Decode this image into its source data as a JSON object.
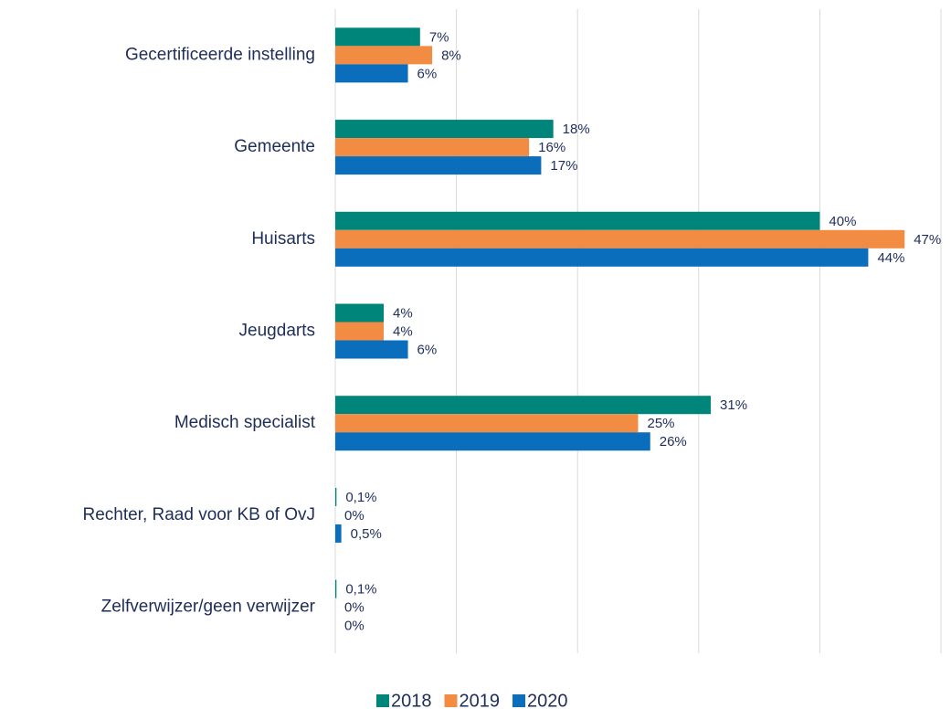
{
  "chart_data": {
    "type": "barh",
    "categories": [
      "Gecertificeerde instelling",
      "Gemeente",
      "Huisarts",
      "Jeugdarts",
      "Medisch specialist",
      "Rechter, Raad voor KB of OvJ",
      "Zelfverwijzer/geen verwijzer"
    ],
    "series": [
      {
        "name": "2018",
        "color": "#00857a",
        "values": [
          7,
          18,
          40,
          4,
          31,
          0.1,
          0.1
        ],
        "value_labels": [
          "7%",
          "18%",
          "40%",
          "4%",
          "31%",
          "0,1%",
          "0,1%"
        ]
      },
      {
        "name": "2019",
        "color": "#f28c43",
        "values": [
          8,
          16,
          47,
          4,
          25,
          0,
          0
        ],
        "value_labels": [
          "8%",
          "16%",
          "47%",
          "4%",
          "25%",
          "0%",
          "0%"
        ]
      },
      {
        "name": "2020",
        "color": "#0a6ebd",
        "values": [
          6,
          17,
          44,
          6,
          26,
          0.5,
          0
        ],
        "value_labels": [
          "6%",
          "17%",
          "44%",
          "6%",
          "26%",
          "0,5%",
          "0%"
        ]
      }
    ],
    "xlim": [
      0,
      50
    ],
    "xticks": [
      0,
      10,
      20,
      30,
      40,
      50
    ],
    "grid": true,
    "legend": "bottom"
  }
}
